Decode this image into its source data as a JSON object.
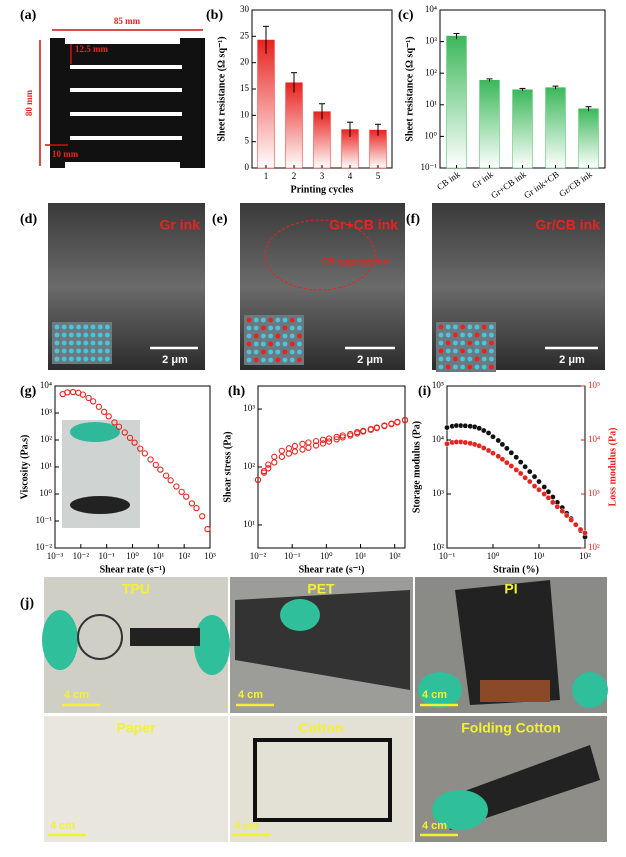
{
  "panel_labels": [
    "(a)",
    "(b)",
    "(c)",
    "(d)",
    "(e)",
    "(f)",
    "(g)",
    "(h)",
    "(i)",
    "(j)"
  ],
  "schematic": {
    "width_label": "85 mm",
    "finger_label": "12.5 mm",
    "height_label": "80 mm",
    "edge_label": "10 mm"
  },
  "sem_images": [
    {
      "title": "Gr ink",
      "scale_bar": "2 μm"
    },
    {
      "title": "Gr+CB ink",
      "annotation": "CB aggregation",
      "scale_bar": "2 μm"
    },
    {
      "title": "Gr/CB ink",
      "scale_bar": "2 μm"
    }
  ],
  "photos": [
    {
      "label": "TPU",
      "scale_bar": "4 cm"
    },
    {
      "label": "PET",
      "scale_bar": "4 cm"
    },
    {
      "label": "PI",
      "scale_bar": "4 cm"
    },
    {
      "label": "Paper",
      "scale_bar": "4 cm"
    },
    {
      "label": "Cotton",
      "scale_bar": "4 cm"
    },
    {
      "label": "Folding Cotton",
      "scale_bar": "4 cm"
    }
  ],
  "chart_data": [
    {
      "type": "bar",
      "ylabel": "Sheet resistance (Ω sq⁻¹)",
      "xlabel": "Printing cycles",
      "categories": [
        "1",
        "2",
        "3",
        "4",
        "5"
      ],
      "values": [
        24.3,
        16.2,
        10.7,
        7.3,
        7.2
      ],
      "errors": [
        2.6,
        1.9,
        1.5,
        1.4,
        1.1
      ],
      "color": "#e8231f",
      "ylim": [
        0,
        30
      ],
      "yticks": [
        0,
        5,
        10,
        15,
        20,
        25,
        30
      ]
    },
    {
      "type": "bar",
      "ylabel": "Sheet resistance (Ω sq⁻¹)",
      "yscale": "log",
      "categories": [
        "CB ink",
        "Gr ink",
        "Gr+CB ink",
        "Gr ink+CB",
        "Gr/CB ink"
      ],
      "values": [
        1500,
        60,
        30,
        35,
        7.5
      ],
      "errors": [
        300,
        6,
        3,
        4,
        1.2
      ],
      "color": "#3cb85a",
      "ylim": [
        0.1,
        10000
      ],
      "yticks": [
        {
          "value": 0.1,
          "label": "10⁻¹"
        },
        {
          "value": 1,
          "label": "10⁰"
        },
        {
          "value": 10,
          "label": "10¹"
        },
        {
          "value": 100,
          "label": "10²"
        },
        {
          "value": 1000,
          "label": "10³"
        },
        {
          "value": 10000,
          "label": "10⁴"
        }
      ]
    },
    {
      "type": "scatter",
      "ylabel": "Viscosity (Pa.s)",
      "xlabel": "Shear rate (s⁻¹)",
      "xscale": "log",
      "yscale": "log",
      "marker": "open",
      "x": [
        0.002,
        0.003,
        0.005,
        0.008,
        0.012,
        0.02,
        0.03,
        0.05,
        0.08,
        0.12,
        0.2,
        0.3,
        0.5,
        0.8,
        1.2,
        2,
        3,
        5,
        8,
        12,
        20,
        30,
        50,
        80,
        120,
        200,
        300,
        500,
        800
      ],
      "series": [
        {
          "color": "#e8231f",
          "values": [
            5000,
            5800,
            6000,
            5600,
            4800,
            3600,
            2700,
            1700,
            1100,
            750,
            450,
            310,
            190,
            120,
            80,
            48,
            32,
            19,
            12,
            8,
            4.8,
            3.2,
            1.9,
            1.2,
            0.8,
            0.45,
            0.3,
            0.15,
            0.05
          ]
        }
      ],
      "xlim": [
        0.001,
        1000
      ],
      "ylim": [
        0.01,
        10000
      ],
      "xticks": [
        {
          "value": 0.001,
          "label": "10⁻³"
        },
        {
          "value": 0.01,
          "label": "10⁻²"
        },
        {
          "value": 0.1,
          "label": "10⁻¹"
        },
        {
          "value": 1,
          "label": "10⁰"
        },
        {
          "value": 10,
          "label": "10¹"
        },
        {
          "value": 100,
          "label": "10²"
        },
        {
          "value": 1000,
          "label": "10³"
        }
      ],
      "yticks": [
        {
          "value": 0.01,
          "label": "10⁻²"
        },
        {
          "value": 0.1,
          "label": "10⁻¹"
        },
        {
          "value": 1,
          "label": "10⁰"
        },
        {
          "value": 10,
          "label": "10¹"
        },
        {
          "value": 100,
          "label": "10²"
        },
        {
          "value": 1000,
          "label": "10³"
        },
        {
          "value": 10000,
          "label": "10⁴"
        }
      ]
    },
    {
      "type": "scatter",
      "ylabel": "Shear stress (Pa)",
      "xlabel": "Shear rate (s⁻¹)",
      "xscale": "log",
      "yscale": "log",
      "marker": "open",
      "x": [
        0.01,
        0.015,
        0.02,
        0.03,
        0.05,
        0.08,
        0.12,
        0.2,
        0.3,
        0.5,
        0.8,
        1.2,
        2,
        3,
        5,
        8,
        12,
        20,
        30,
        50,
        80,
        120,
        200
      ],
      "series": [
        {
          "color": "#e8231f",
          "values": [
            60,
            85,
            110,
            150,
            190,
            210,
            230,
            250,
            265,
            280,
            295,
            310,
            330,
            350,
            370,
            400,
            420,
            450,
            480,
            520,
            560,
            600,
            650
          ]
        },
        {
          "color": "#e8231f",
          "values": [
            60,
            80,
            95,
            120,
            150,
            170,
            185,
            200,
            215,
            235,
            255,
            275,
            300,
            325,
            350,
            380,
            410,
            440,
            470,
            510,
            550,
            590,
            640
          ]
        }
      ],
      "xlim": [
        0.01,
        200
      ],
      "ylim": [
        4,
        2500
      ],
      "xticks": [
        {
          "value": 0.01,
          "label": "10⁻²"
        },
        {
          "value": 0.1,
          "label": "10⁻¹"
        },
        {
          "value": 1,
          "label": "10⁰"
        },
        {
          "value": 10,
          "label": "10¹"
        },
        {
          "value": 100,
          "label": "10²"
        }
      ],
      "yticks": [
        {
          "value": 10,
          "label": "10¹"
        },
        {
          "value": 100,
          "label": "10²"
        },
        {
          "value": 1000,
          "label": "10³"
        }
      ]
    },
    {
      "type": "scatter",
      "ylabel": "Storage modulus (Pa)",
      "y2label": "Loss modulus (Pa)",
      "xlabel": "Strain (%)",
      "xscale": "log",
      "yscale": "log",
      "marker": "filled",
      "y2color": "#e8231f",
      "x": [
        0.1,
        0.13,
        0.16,
        0.2,
        0.25,
        0.32,
        0.4,
        0.5,
        0.63,
        0.8,
        1,
        1.3,
        1.6,
        2,
        2.5,
        3.2,
        4,
        5,
        6.3,
        8,
        10,
        13,
        16,
        20,
        25,
        32,
        40,
        50,
        63,
        80,
        100
      ],
      "series": [
        {
          "color": "#111111",
          "values": [
            17000,
            18000,
            18500,
            18500,
            18300,
            18000,
            17500,
            16500,
            15000,
            13500,
            11500,
            9800,
            8300,
            7000,
            5800,
            4800,
            3900,
            3200,
            2600,
            2100,
            1700,
            1350,
            1100,
            880,
            700,
            560,
            440,
            350,
            270,
            210,
            160
          ]
        },
        {
          "color": "#e8231f",
          "axis": "y2",
          "values": [
            8500,
            9000,
            9200,
            9200,
            9000,
            8700,
            8300,
            7800,
            7100,
            6400,
            5700,
            5000,
            4400,
            3800,
            3300,
            2800,
            2400,
            2000,
            1700,
            1400,
            1200,
            1000,
            850,
            700,
            580,
            480,
            400,
            330,
            270,
            220,
            190
          ]
        }
      ],
      "xlim": [
        0.1,
        100
      ],
      "ylim": [
        100,
        100000
      ],
      "y2lim": [
        100,
        100000
      ],
      "xticks": [
        {
          "value": 0.1,
          "label": "10⁻¹"
        },
        {
          "value": 1,
          "label": "10⁰"
        },
        {
          "value": 10,
          "label": "10¹"
        },
        {
          "value": 100,
          "label": "10²"
        }
      ],
      "yticks": [
        {
          "value": 100,
          "label": "10²"
        },
        {
          "value": 1000,
          "label": "10³"
        },
        {
          "value": 10000,
          "label": "10⁴"
        },
        {
          "value": 100000,
          "label": "10⁵"
        }
      ],
      "y2ticks": [
        {
          "value": 100,
          "label": "10²"
        },
        {
          "value": 1000,
          "label": "10³"
        },
        {
          "value": 10000,
          "label": "10⁴"
        },
        {
          "value": 100000,
          "label": "10⁵"
        }
      ]
    }
  ]
}
